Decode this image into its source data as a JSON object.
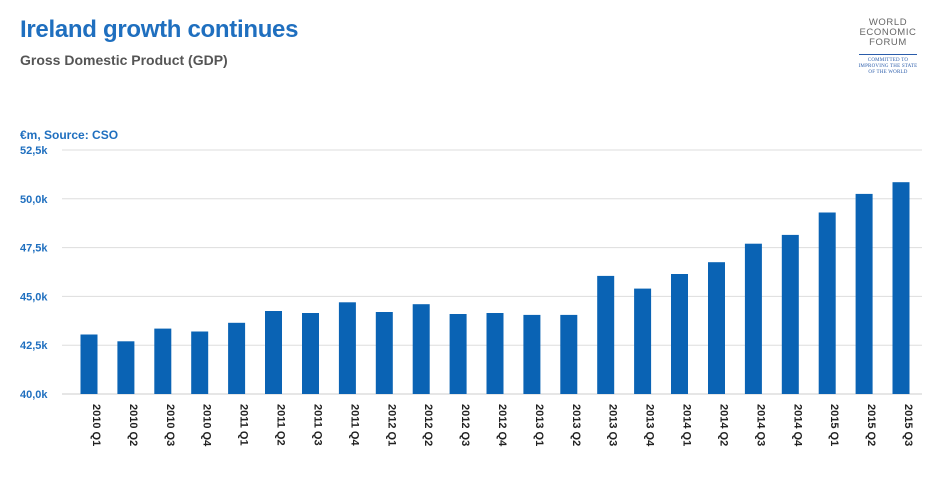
{
  "header": {
    "title": "Ireland growth continues",
    "subtitle": "Gross Domestic Product (GDP)"
  },
  "logo": {
    "lines": [
      "WORLD",
      "ECONOMIC",
      "FORUM"
    ],
    "tagline": [
      "COMMITTED TO",
      "IMPROVING THE STATE",
      "OF THE WORLD"
    ]
  },
  "colors": {
    "title": "#1f6fbf",
    "bar": "#0a63b4",
    "grid": "#dddddd"
  },
  "chart_data": {
    "type": "bar",
    "unit_label": "€m, Source: CSO",
    "categories": [
      "2010 Q1",
      "2010 Q2",
      "2010 Q3",
      "2010 Q4",
      "2011 Q1",
      "2011 Q2",
      "2011 Q3",
      "2011 Q4",
      "2012 Q1",
      "2012 Q2",
      "2012 Q3",
      "2012 Q4",
      "2013 Q1",
      "2013 Q2",
      "2013 Q3",
      "2013 Q4",
      "2014 Q1",
      "2014 Q2",
      "2014 Q3",
      "2014 Q4",
      "2015 Q1",
      "2015 Q2",
      "2015 Q3"
    ],
    "values": [
      43050,
      42700,
      43350,
      43200,
      43650,
      44250,
      44150,
      44700,
      44200,
      44600,
      44100,
      44150,
      44050,
      44050,
      46050,
      45400,
      46150,
      46750,
      47700,
      48150,
      49300,
      50250,
      50850
    ],
    "ylim": [
      40000,
      52500
    ],
    "yticks": [
      40000,
      42500,
      45000,
      47500,
      50000,
      52500
    ],
    "ytick_labels": [
      "40,0k",
      "42,5k",
      "45,0k",
      "47,5k",
      "50,0k",
      "52,5k"
    ],
    "grid": true,
    "legend": "none"
  }
}
